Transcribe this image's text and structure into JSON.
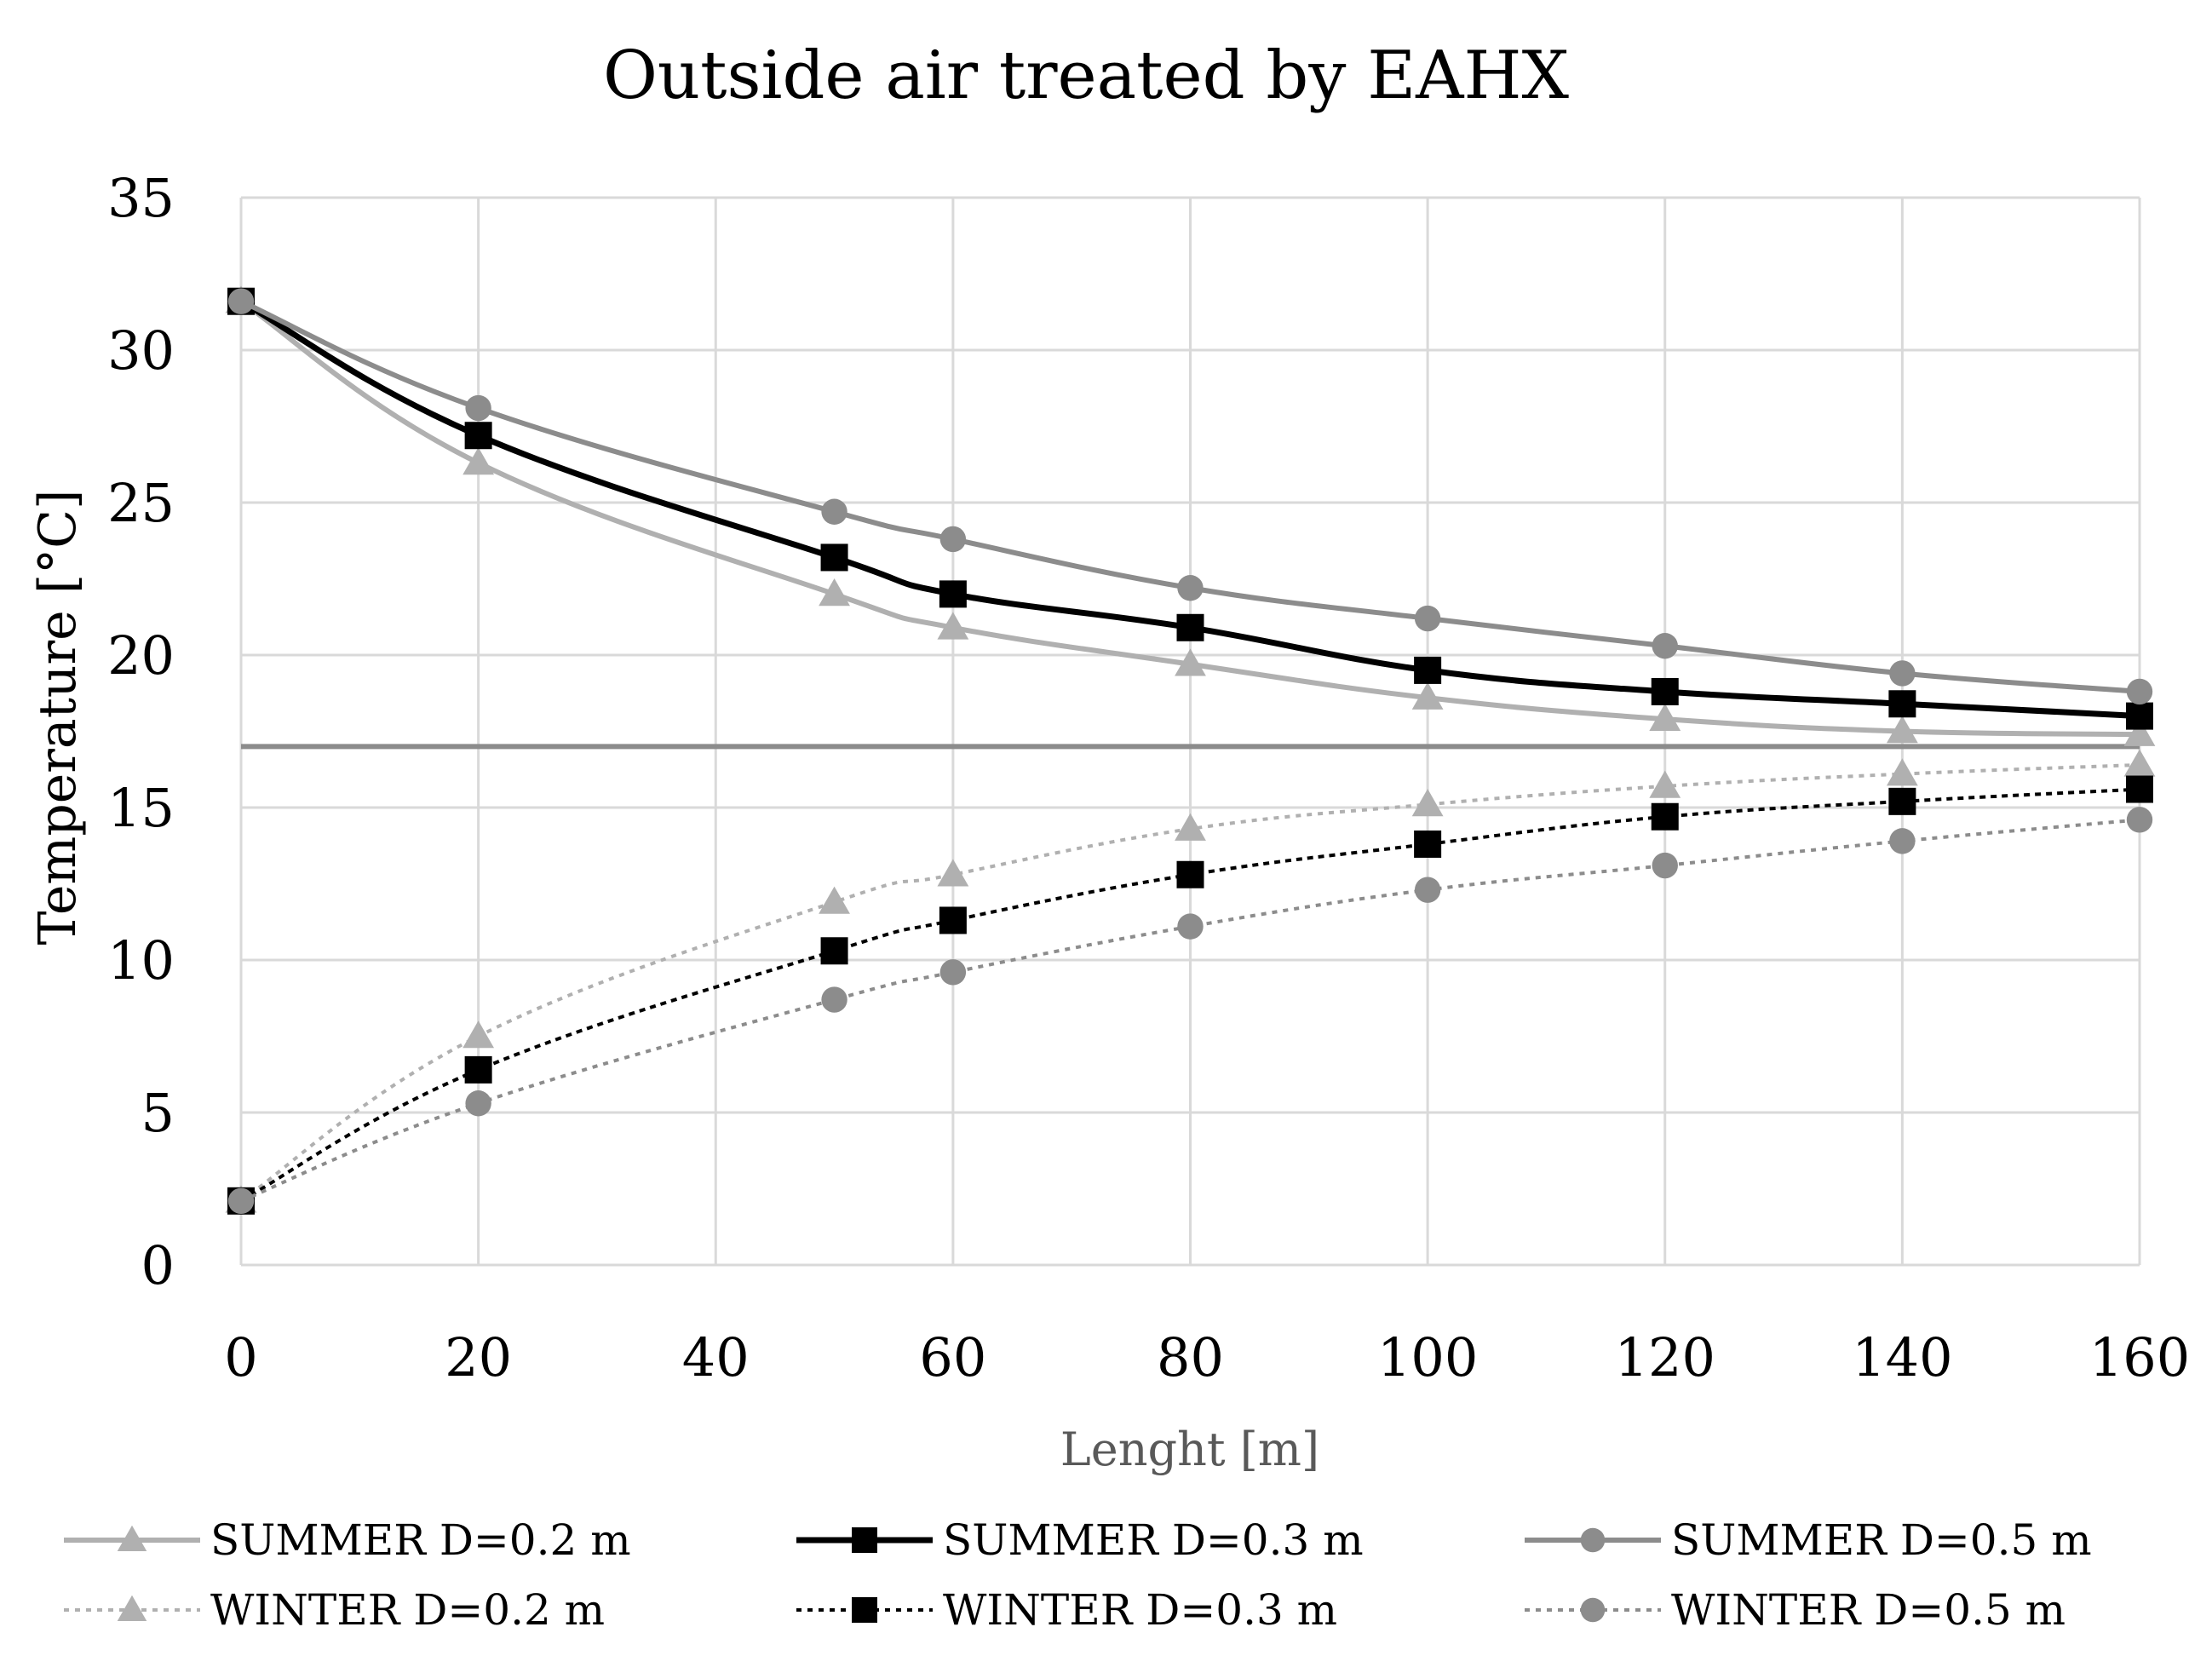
{
  "chart_data": {
    "type": "line",
    "title": "Outside air treated by EAHX",
    "xlabel": "Lenght [m]",
    "ylabel": "Temperature [°C]",
    "xlim": [
      0,
      160
    ],
    "ylim": [
      0,
      35
    ],
    "xticks": [
      0,
      20,
      40,
      60,
      80,
      100,
      120,
      140,
      160
    ],
    "yticks": [
      0,
      5,
      10,
      15,
      20,
      25,
      30,
      35
    ],
    "grid": true,
    "legend_position": "bottom",
    "reference_line": {
      "y": 17,
      "color": "#8c8c8c"
    },
    "x": [
      0,
      20,
      50,
      60,
      80,
      100,
      120,
      140,
      160
    ],
    "series": [
      {
        "name": "SUMMER D=0.2 m",
        "marker": "triangle",
        "style": "solid",
        "color": "#b0b0b0",
        "values": [
          31.6,
          26.3,
          22.0,
          20.9,
          19.7,
          18.6,
          17.9,
          17.5,
          17.4
        ]
      },
      {
        "name": "SUMMER D=0.3 m",
        "marker": "square",
        "style": "solid",
        "color": "#000000",
        "values": [
          31.6,
          27.2,
          23.2,
          22.0,
          20.9,
          19.5,
          18.8,
          18.4,
          18.0
        ]
      },
      {
        "name": "SUMMER D=0.5 m",
        "marker": "circle",
        "style": "solid",
        "color": "#8c8c8c",
        "values": [
          31.6,
          28.1,
          24.7,
          23.8,
          22.2,
          21.2,
          20.3,
          19.4,
          18.8
        ]
      },
      {
        "name": "WINTER D=0.2 m",
        "marker": "triangle",
        "style": "dotted",
        "color": "#b0b0b0",
        "values": [
          2.1,
          7.5,
          11.9,
          12.8,
          14.3,
          15.1,
          15.7,
          16.1,
          16.4
        ]
      },
      {
        "name": "WINTER D=0.3 m",
        "marker": "square",
        "style": "dotted",
        "color": "#000000",
        "values": [
          2.1,
          6.4,
          10.3,
          11.3,
          12.8,
          13.8,
          14.7,
          15.2,
          15.6
        ]
      },
      {
        "name": "WINTER D=0.5 m",
        "marker": "circle",
        "style": "dotted",
        "color": "#8c8c8c",
        "values": [
          2.1,
          5.3,
          8.7,
          9.6,
          11.1,
          12.3,
          13.1,
          13.9,
          14.6
        ]
      }
    ]
  }
}
